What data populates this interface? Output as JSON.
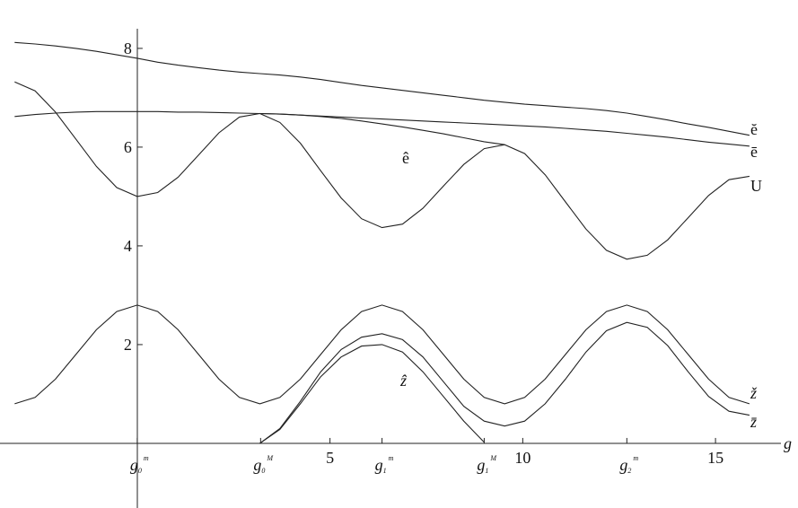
{
  "chart_data": {
    "type": "line",
    "x_label": "g",
    "x": [
      -3.18,
      -2.65,
      -2.12,
      -1.59,
      -1.06,
      -0.53,
      0,
      0.53,
      1.06,
      1.59,
      2.12,
      2.65,
      3.18,
      3.7,
      4.23,
      4.76,
      5.29,
      5.82,
      6.35,
      6.88,
      7.41,
      7.94,
      8.47,
      9.0,
      9.53,
      10.05,
      10.58,
      11.11,
      11.64,
      12.17,
      12.7,
      13.23,
      13.76,
      14.29,
      14.82,
      15.35,
      15.88
    ],
    "series": [
      {
        "name": "ĕ",
        "color": "#222222",
        "values": [
          8.12,
          8.09,
          8.05,
          8.0,
          7.94,
          7.87,
          7.8,
          7.72,
          7.66,
          7.61,
          7.56,
          7.52,
          7.49,
          7.46,
          7.42,
          7.37,
          7.31,
          7.25,
          7.2,
          7.15,
          7.1,
          7.05,
          7.0,
          6.95,
          6.91,
          6.87,
          6.84,
          6.81,
          6.78,
          6.74,
          6.69,
          6.62,
          6.55,
          6.47,
          6.4,
          6.32,
          6.24
        ]
      },
      {
        "name": "ē",
        "color": "#222222",
        "values": [
          6.62,
          6.66,
          6.69,
          6.71,
          6.72,
          6.72,
          6.72,
          6.72,
          6.71,
          6.71,
          6.7,
          6.69,
          6.68,
          6.67,
          6.65,
          6.63,
          6.61,
          6.59,
          6.57,
          6.55,
          6.53,
          6.51,
          6.49,
          6.47,
          6.45,
          6.43,
          6.41,
          6.38,
          6.35,
          6.32,
          6.28,
          6.24,
          6.2,
          6.15,
          6.1,
          6.06,
          6.02
        ]
      },
      {
        "name": "U",
        "color": "#222222",
        "values": [
          7.32,
          7.14,
          6.71,
          6.16,
          5.61,
          5.18,
          5.0,
          5.08,
          5.39,
          5.84,
          6.29,
          6.61,
          6.68,
          6.5,
          6.08,
          5.52,
          4.97,
          4.55,
          4.37,
          4.44,
          4.76,
          5.21,
          5.65,
          5.97,
          6.05,
          5.87,
          5.44,
          4.89,
          4.34,
          3.91,
          3.73,
          3.81,
          4.12,
          4.57,
          5.02,
          5.34,
          5.41
        ]
      },
      {
        "name": "ê",
        "color": "#222222",
        "values": [
          null,
          null,
          null,
          null,
          null,
          null,
          null,
          null,
          null,
          null,
          null,
          null,
          6.68,
          6.67,
          6.65,
          6.62,
          6.58,
          6.53,
          6.47,
          6.41,
          6.34,
          6.27,
          6.19,
          6.11,
          6.05,
          null,
          null,
          null,
          null,
          null,
          null,
          null,
          null,
          null,
          null,
          null,
          null
        ]
      },
      {
        "name": "ž",
        "color": "#222222",
        "values": [
          0.8,
          0.93,
          1.3,
          1.8,
          2.3,
          2.67,
          2.8,
          2.67,
          2.3,
          1.8,
          1.3,
          0.93,
          0.8,
          0.93,
          1.3,
          1.8,
          2.3,
          2.67,
          2.8,
          2.67,
          2.3,
          1.8,
          1.3,
          0.93,
          0.8,
          0.93,
          1.3,
          1.8,
          2.3,
          2.67,
          2.8,
          2.67,
          2.3,
          1.8,
          1.3,
          0.93,
          0.8
        ]
      },
      {
        "name": "z̄",
        "color": "#222222",
        "values": [
          null,
          null,
          null,
          null,
          null,
          null,
          null,
          null,
          null,
          null,
          null,
          null,
          0,
          0.3,
          0.85,
          1.45,
          1.9,
          2.15,
          2.22,
          2.1,
          1.75,
          1.25,
          0.75,
          0.45,
          0.35,
          0.45,
          0.8,
          1.3,
          1.85,
          2.28,
          2.45,
          2.35,
          1.98,
          1.45,
          0.95,
          0.65,
          0.57
        ]
      },
      {
        "name": "ẑ",
        "color": "#222222",
        "values": [
          null,
          null,
          null,
          null,
          null,
          null,
          null,
          null,
          null,
          null,
          null,
          null,
          0,
          0.28,
          0.8,
          1.35,
          1.75,
          1.97,
          2.0,
          1.85,
          1.45,
          0.95,
          0.45,
          0.02,
          null,
          null,
          null,
          null,
          null,
          null,
          null,
          null,
          null,
          null,
          null,
          null,
          null
        ]
      }
    ],
    "xlim": [
      -3.56,
      17.14
    ],
    "ylim": [
      -1.31,
      8.98
    ],
    "xticks": [
      {
        "value": 0,
        "label": "g",
        "sub": "0",
        "sup": "m"
      },
      {
        "value": 3.2,
        "label": "g",
        "sub": "0",
        "sup": "M"
      },
      5,
      {
        "value": 6.35,
        "label": "g",
        "sub": "1",
        "sup": "m"
      },
      {
        "value": 9.0,
        "label": "g",
        "sub": "1",
        "sup": "M"
      },
      10,
      {
        "value": 12.7,
        "label": "g",
        "sub": "2",
        "sup": "m"
      },
      15
    ],
    "yticks": [
      2,
      4,
      6,
      8
    ]
  }
}
